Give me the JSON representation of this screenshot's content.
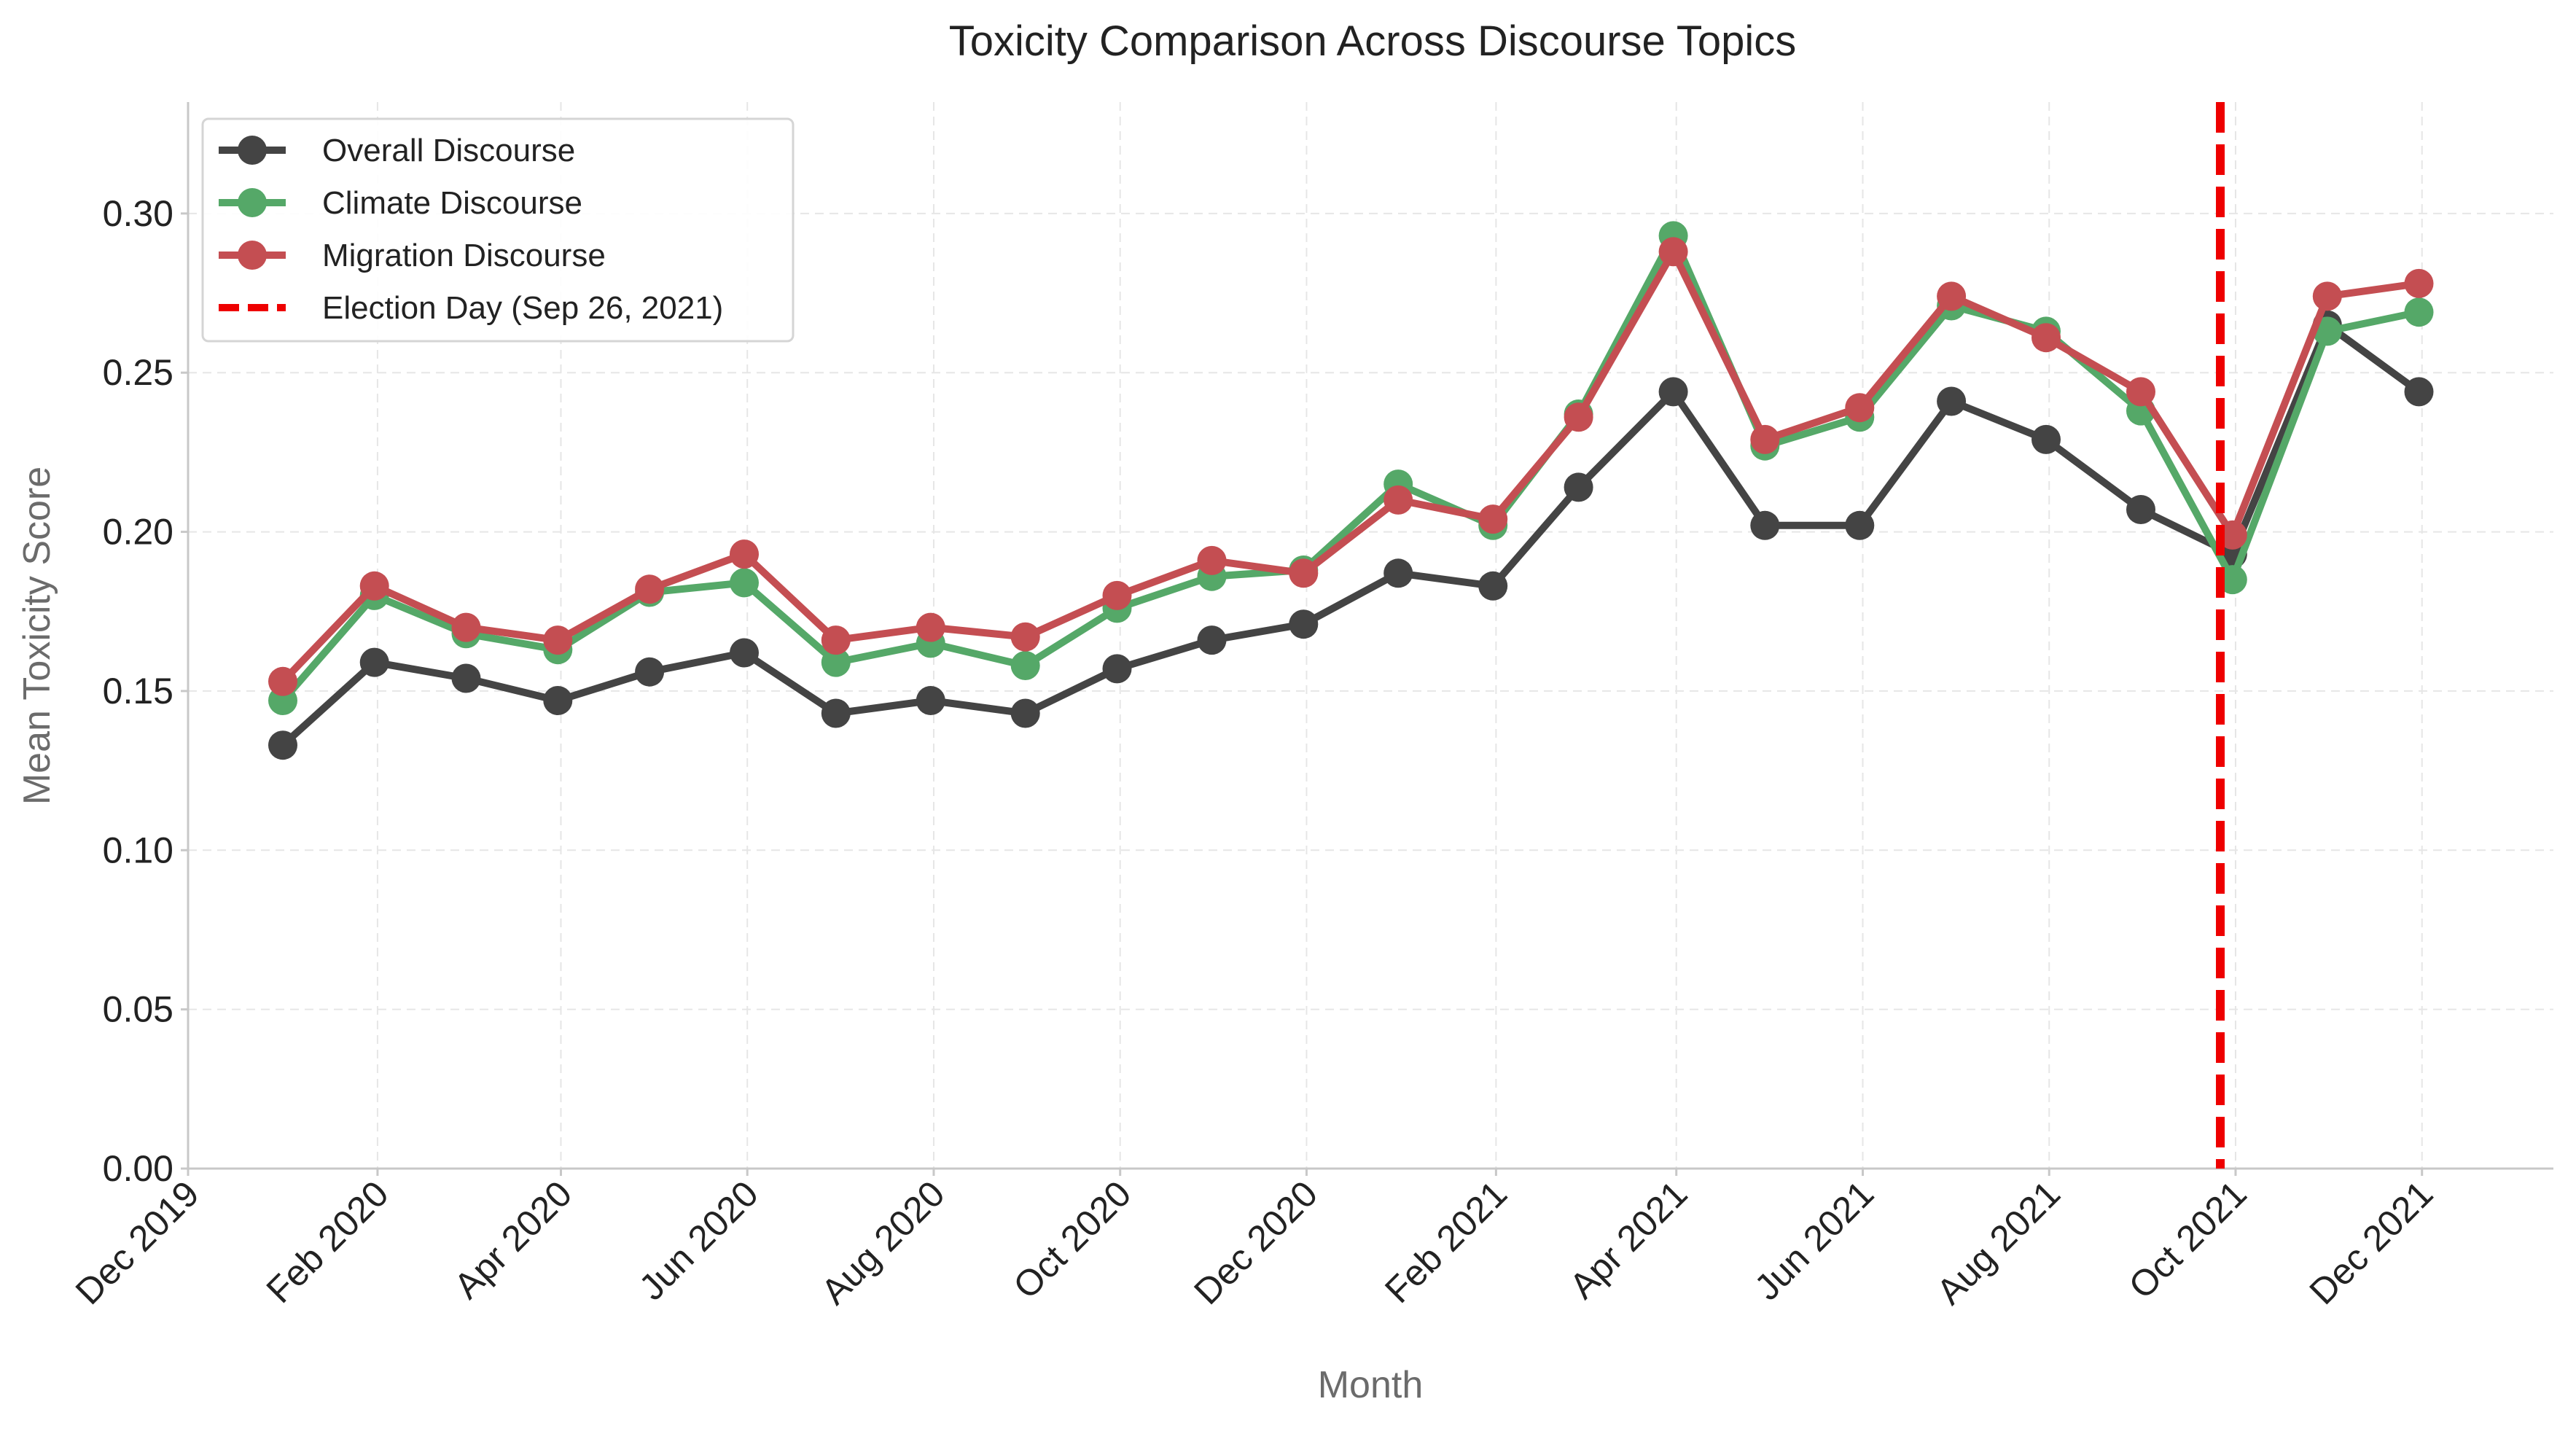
{
  "chart_data": {
    "type": "line",
    "title": "Toxicity Comparison Across Discourse Topics",
    "xlabel": "Month",
    "ylabel": "Mean Toxicity Score",
    "x": [
      "2020-01",
      "2020-02",
      "2020-03",
      "2020-04",
      "2020-05",
      "2020-06",
      "2020-07",
      "2020-08",
      "2020-09",
      "2020-10",
      "2020-11",
      "2020-12",
      "2021-01",
      "2021-02",
      "2021-03",
      "2021-04",
      "2021-05",
      "2021-06",
      "2021-07",
      "2021-08",
      "2021-09",
      "2021-10",
      "2021-11",
      "2021-12"
    ],
    "xlim": [
      "2019-12-01",
      "2022-01-13"
    ],
    "ylim": [
      0,
      0.335
    ],
    "yticks": [
      "0.00",
      "0.05",
      "0.10",
      "0.15",
      "0.20",
      "0.25",
      "0.30"
    ],
    "yticks_values": [
      0,
      0.05,
      0.1,
      0.15,
      0.2,
      0.25,
      0.3
    ],
    "xticks": [
      "Dec 2019",
      "Feb 2020",
      "Apr 2020",
      "Jun 2020",
      "Aug 2020",
      "Oct 2020",
      "Dec 2020",
      "Feb 2021",
      "Apr 2021",
      "Jun 2021",
      "Aug 2021",
      "Oct 2021",
      "Dec 2021"
    ],
    "xticks_dates": [
      "2019-12-01",
      "2020-02-01",
      "2020-04-01",
      "2020-06-01",
      "2020-08-01",
      "2020-10-01",
      "2020-12-01",
      "2021-02-01",
      "2021-04-01",
      "2021-06-01",
      "2021-08-01",
      "2021-10-01",
      "2021-12-01"
    ],
    "grid": true,
    "legend_position": "top-left",
    "series": [
      {
        "name": "Overall Discourse",
        "color": "#444444",
        "marker": "circle",
        "dates": [
          "2020-01-01",
          "2020-01-31",
          "2020-03-01",
          "2020-03-31",
          "2020-04-30",
          "2020-05-31",
          "2020-06-30",
          "2020-07-31",
          "2020-08-31",
          "2020-09-30",
          "2020-10-31",
          "2020-11-30",
          "2020-12-31",
          "2021-01-31",
          "2021-02-28",
          "2021-03-31",
          "2021-04-30",
          "2021-05-31",
          "2021-06-30",
          "2021-07-31",
          "2021-08-31",
          "2021-09-30",
          "2021-10-31",
          "2021-11-30"
        ],
        "values": [
          0.133,
          0.159,
          0.154,
          0.147,
          0.156,
          0.162,
          0.143,
          0.147,
          0.143,
          0.157,
          0.166,
          0.171,
          0.187,
          0.183,
          0.214,
          0.244,
          0.202,
          0.202,
          0.241,
          0.229,
          0.207,
          0.193,
          0.265,
          0.244
        ]
      },
      {
        "name": "Climate Discourse",
        "color": "#55a868",
        "marker": "circle",
        "dates": [
          "2020-01-01",
          "2020-01-31",
          "2020-03-01",
          "2020-03-31",
          "2020-04-30",
          "2020-05-31",
          "2020-06-30",
          "2020-07-31",
          "2020-08-31",
          "2020-09-30",
          "2020-10-31",
          "2020-11-30",
          "2020-12-31",
          "2021-01-31",
          "2021-02-28",
          "2021-03-31",
          "2021-04-30",
          "2021-05-31",
          "2021-06-30",
          "2021-07-31",
          "2021-08-31",
          "2021-09-30",
          "2021-10-31",
          "2021-11-30"
        ],
        "values": [
          0.147,
          0.18,
          0.168,
          0.163,
          0.181,
          0.184,
          0.159,
          0.165,
          0.158,
          0.176,
          0.186,
          0.188,
          0.215,
          0.202,
          0.237,
          0.293,
          0.227,
          0.236,
          0.271,
          0.263,
          0.238,
          0.185,
          0.263,
          0.269
        ]
      },
      {
        "name": "Migration Discourse",
        "color": "#c44e52",
        "marker": "circle",
        "dates": [
          "2020-01-01",
          "2020-01-31",
          "2020-03-01",
          "2020-03-31",
          "2020-04-30",
          "2020-05-31",
          "2020-06-30",
          "2020-07-31",
          "2020-08-31",
          "2020-09-30",
          "2020-10-31",
          "2020-11-30",
          "2020-12-31",
          "2021-01-31",
          "2021-02-28",
          "2021-03-31",
          "2021-04-30",
          "2021-05-31",
          "2021-06-30",
          "2021-07-31",
          "2021-08-31",
          "2021-09-30",
          "2021-10-31",
          "2021-11-30"
        ],
        "values": [
          0.153,
          0.183,
          0.17,
          0.166,
          0.182,
          0.193,
          0.166,
          0.17,
          0.167,
          0.18,
          0.191,
          0.187,
          0.21,
          0.204,
          0.236,
          0.288,
          0.229,
          0.239,
          0.274,
          0.261,
          0.244,
          0.199,
          0.274,
          0.278
        ]
      }
    ],
    "annotations": [
      {
        "type": "vline",
        "name": "Election Day (Sep 26, 2021)",
        "date": "2021-09-26",
        "color": "#ee0000",
        "style": "dashed"
      }
    ]
  }
}
